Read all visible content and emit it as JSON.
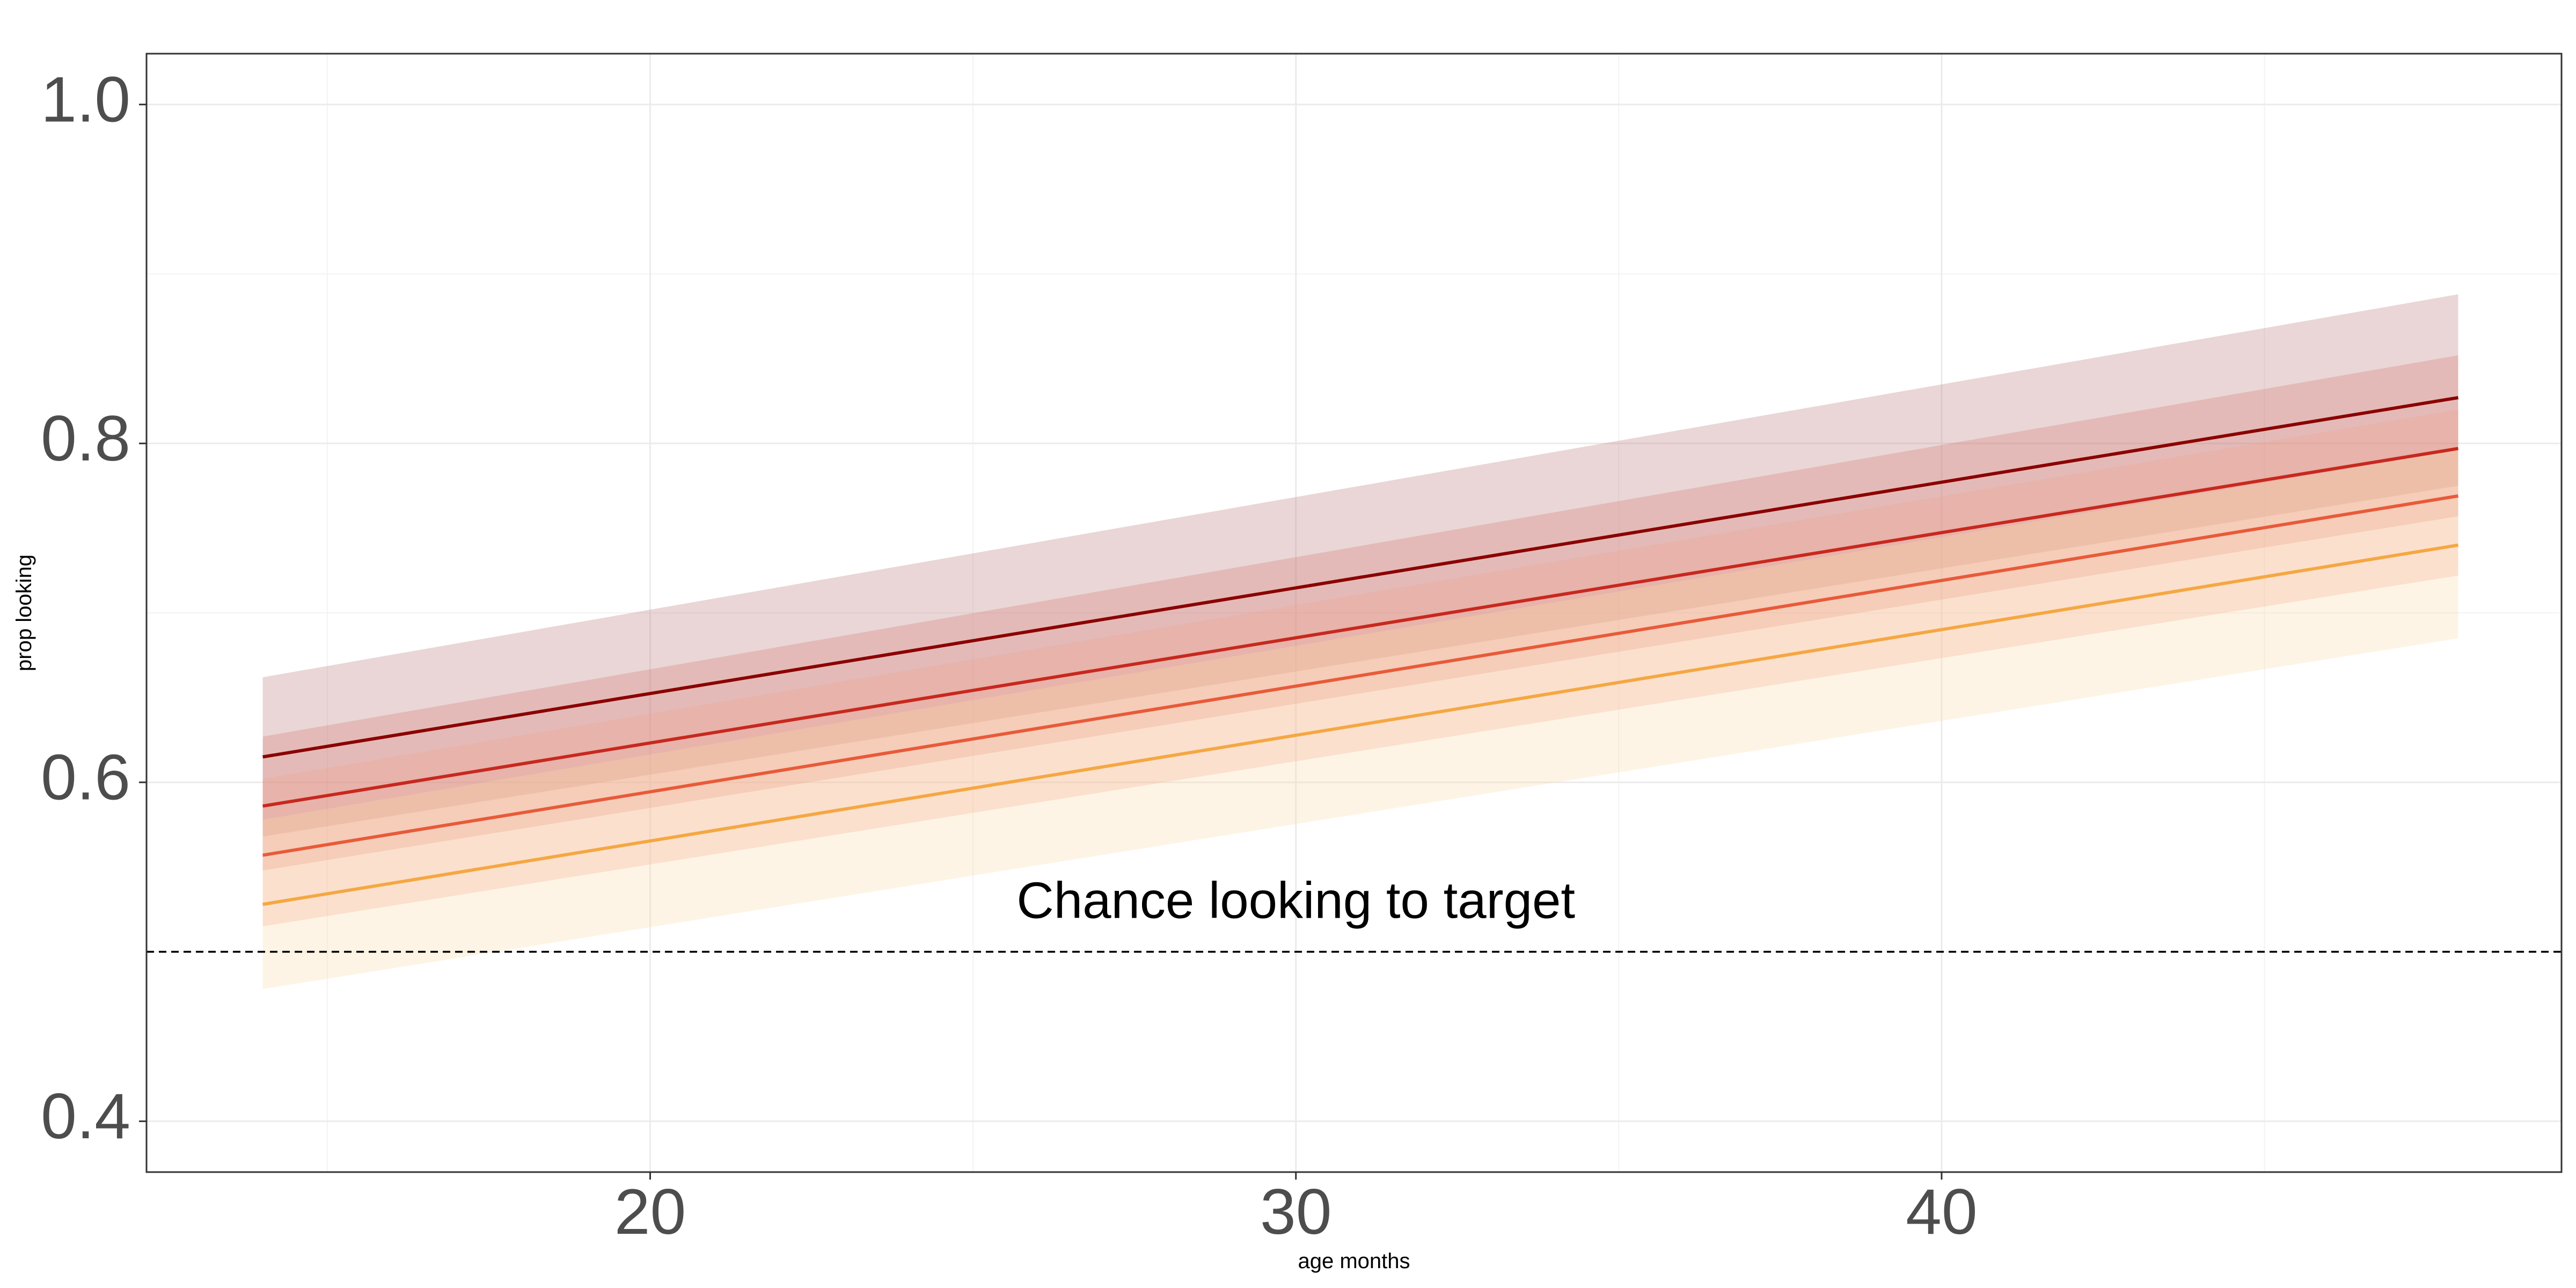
{
  "chart_data": {
    "type": "line",
    "xlabel": "age months",
    "ylabel": "prop looking",
    "xlim": [
      12.2,
      49.6
    ],
    "ylim": [
      0.37,
      1.03
    ],
    "x_ticks": [
      20,
      30,
      40
    ],
    "x_tick_labels": [
      "20",
      "30",
      "40"
    ],
    "y_ticks": [
      0.4,
      0.6,
      0.8,
      1.0
    ],
    "y_tick_labels": [
      "0.4",
      "0.6",
      "0.8",
      "1.0"
    ],
    "grid": true,
    "legend": "none",
    "reference_line": {
      "y": 0.5,
      "style": "dashed",
      "color": "#000000"
    },
    "annotation": {
      "text": "Chance looking to target",
      "x": 30,
      "y": 0.528
    },
    "series": [
      {
        "x": [
          14,
          48
        ],
        "values": [
          0.615,
          0.827
        ],
        "lower": [
          0.568,
          0.775
        ],
        "upper": [
          0.662,
          0.888
        ],
        "color": "#8b0000",
        "band_color": "#b87878"
      },
      {
        "x": [
          14,
          48
        ],
        "values": [
          0.586,
          0.797
        ],
        "lower": [
          0.548,
          0.757
        ],
        "upper": [
          0.627,
          0.852
        ],
        "color": "#c8281e",
        "band_color": "#d47a72"
      },
      {
        "x": [
          14,
          48
        ],
        "values": [
          0.557,
          0.769
        ],
        "lower": [
          0.515,
          0.722
        ],
        "upper": [
          0.602,
          0.82
        ],
        "color": "#e85a3a",
        "band_color": "#f3a290"
      },
      {
        "x": [
          14,
          48
        ],
        "values": [
          0.528,
          0.74
        ],
        "lower": [
          0.478,
          0.685
        ],
        "upper": [
          0.578,
          0.796
        ],
        "color": "#f5a742",
        "band_color": "#fdd9a8"
      }
    ]
  }
}
